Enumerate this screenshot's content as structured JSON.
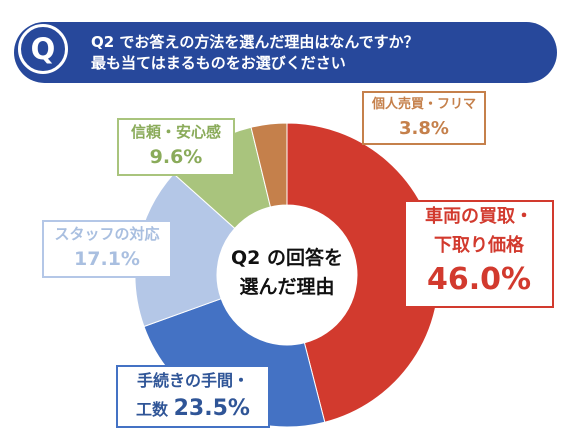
{
  "question": {
    "badge": "Q",
    "line1": "Q2 でお答えの方法を選んだ理由はなんですか？",
    "line2": "最も当てはまるものをお選びください"
  },
  "center": {
    "line1": "Q2 の回答を",
    "line2": "選んだ理由"
  },
  "chart_data": {
    "type": "pie",
    "donut": true,
    "slices": [
      {
        "label": "車両の買取・下取り価格",
        "value": 46.0,
        "pct_text": "46.0%",
        "color": "#d23a2e"
      },
      {
        "label": "手続きの手間・工数",
        "value": 23.5,
        "pct_text": "23.5%",
        "color": "#4472c4"
      },
      {
        "label": "スタッフの対応",
        "value": 17.1,
        "pct_text": "17.1%",
        "color": "#b4c7e7"
      },
      {
        "label": "信頼・安心感",
        "value": 9.6,
        "pct_text": "9.6%",
        "color": "#a9c47d"
      },
      {
        "label": "個人売買・フリマ",
        "value": 3.8,
        "pct_text": "3.8%",
        "color": "#c5804b"
      }
    ],
    "start": "12 o'clock",
    "direction": "clockwise"
  },
  "callouts": {
    "buy": {
      "line1": "車両の買取・",
      "line2": "下取り価格",
      "pct": "46.0%"
    },
    "proc": {
      "line1": "手続きの手間・",
      "line2_prefix": "工数",
      "pct": "23.5%"
    },
    "staff": {
      "line1": "スタッフの対応",
      "pct": "17.1%"
    },
    "trust": {
      "line1": "信頼・安心感",
      "pct": "9.6%"
    },
    "resale": {
      "line1": "個人売買・フリマ",
      "pct": "3.8%"
    }
  }
}
